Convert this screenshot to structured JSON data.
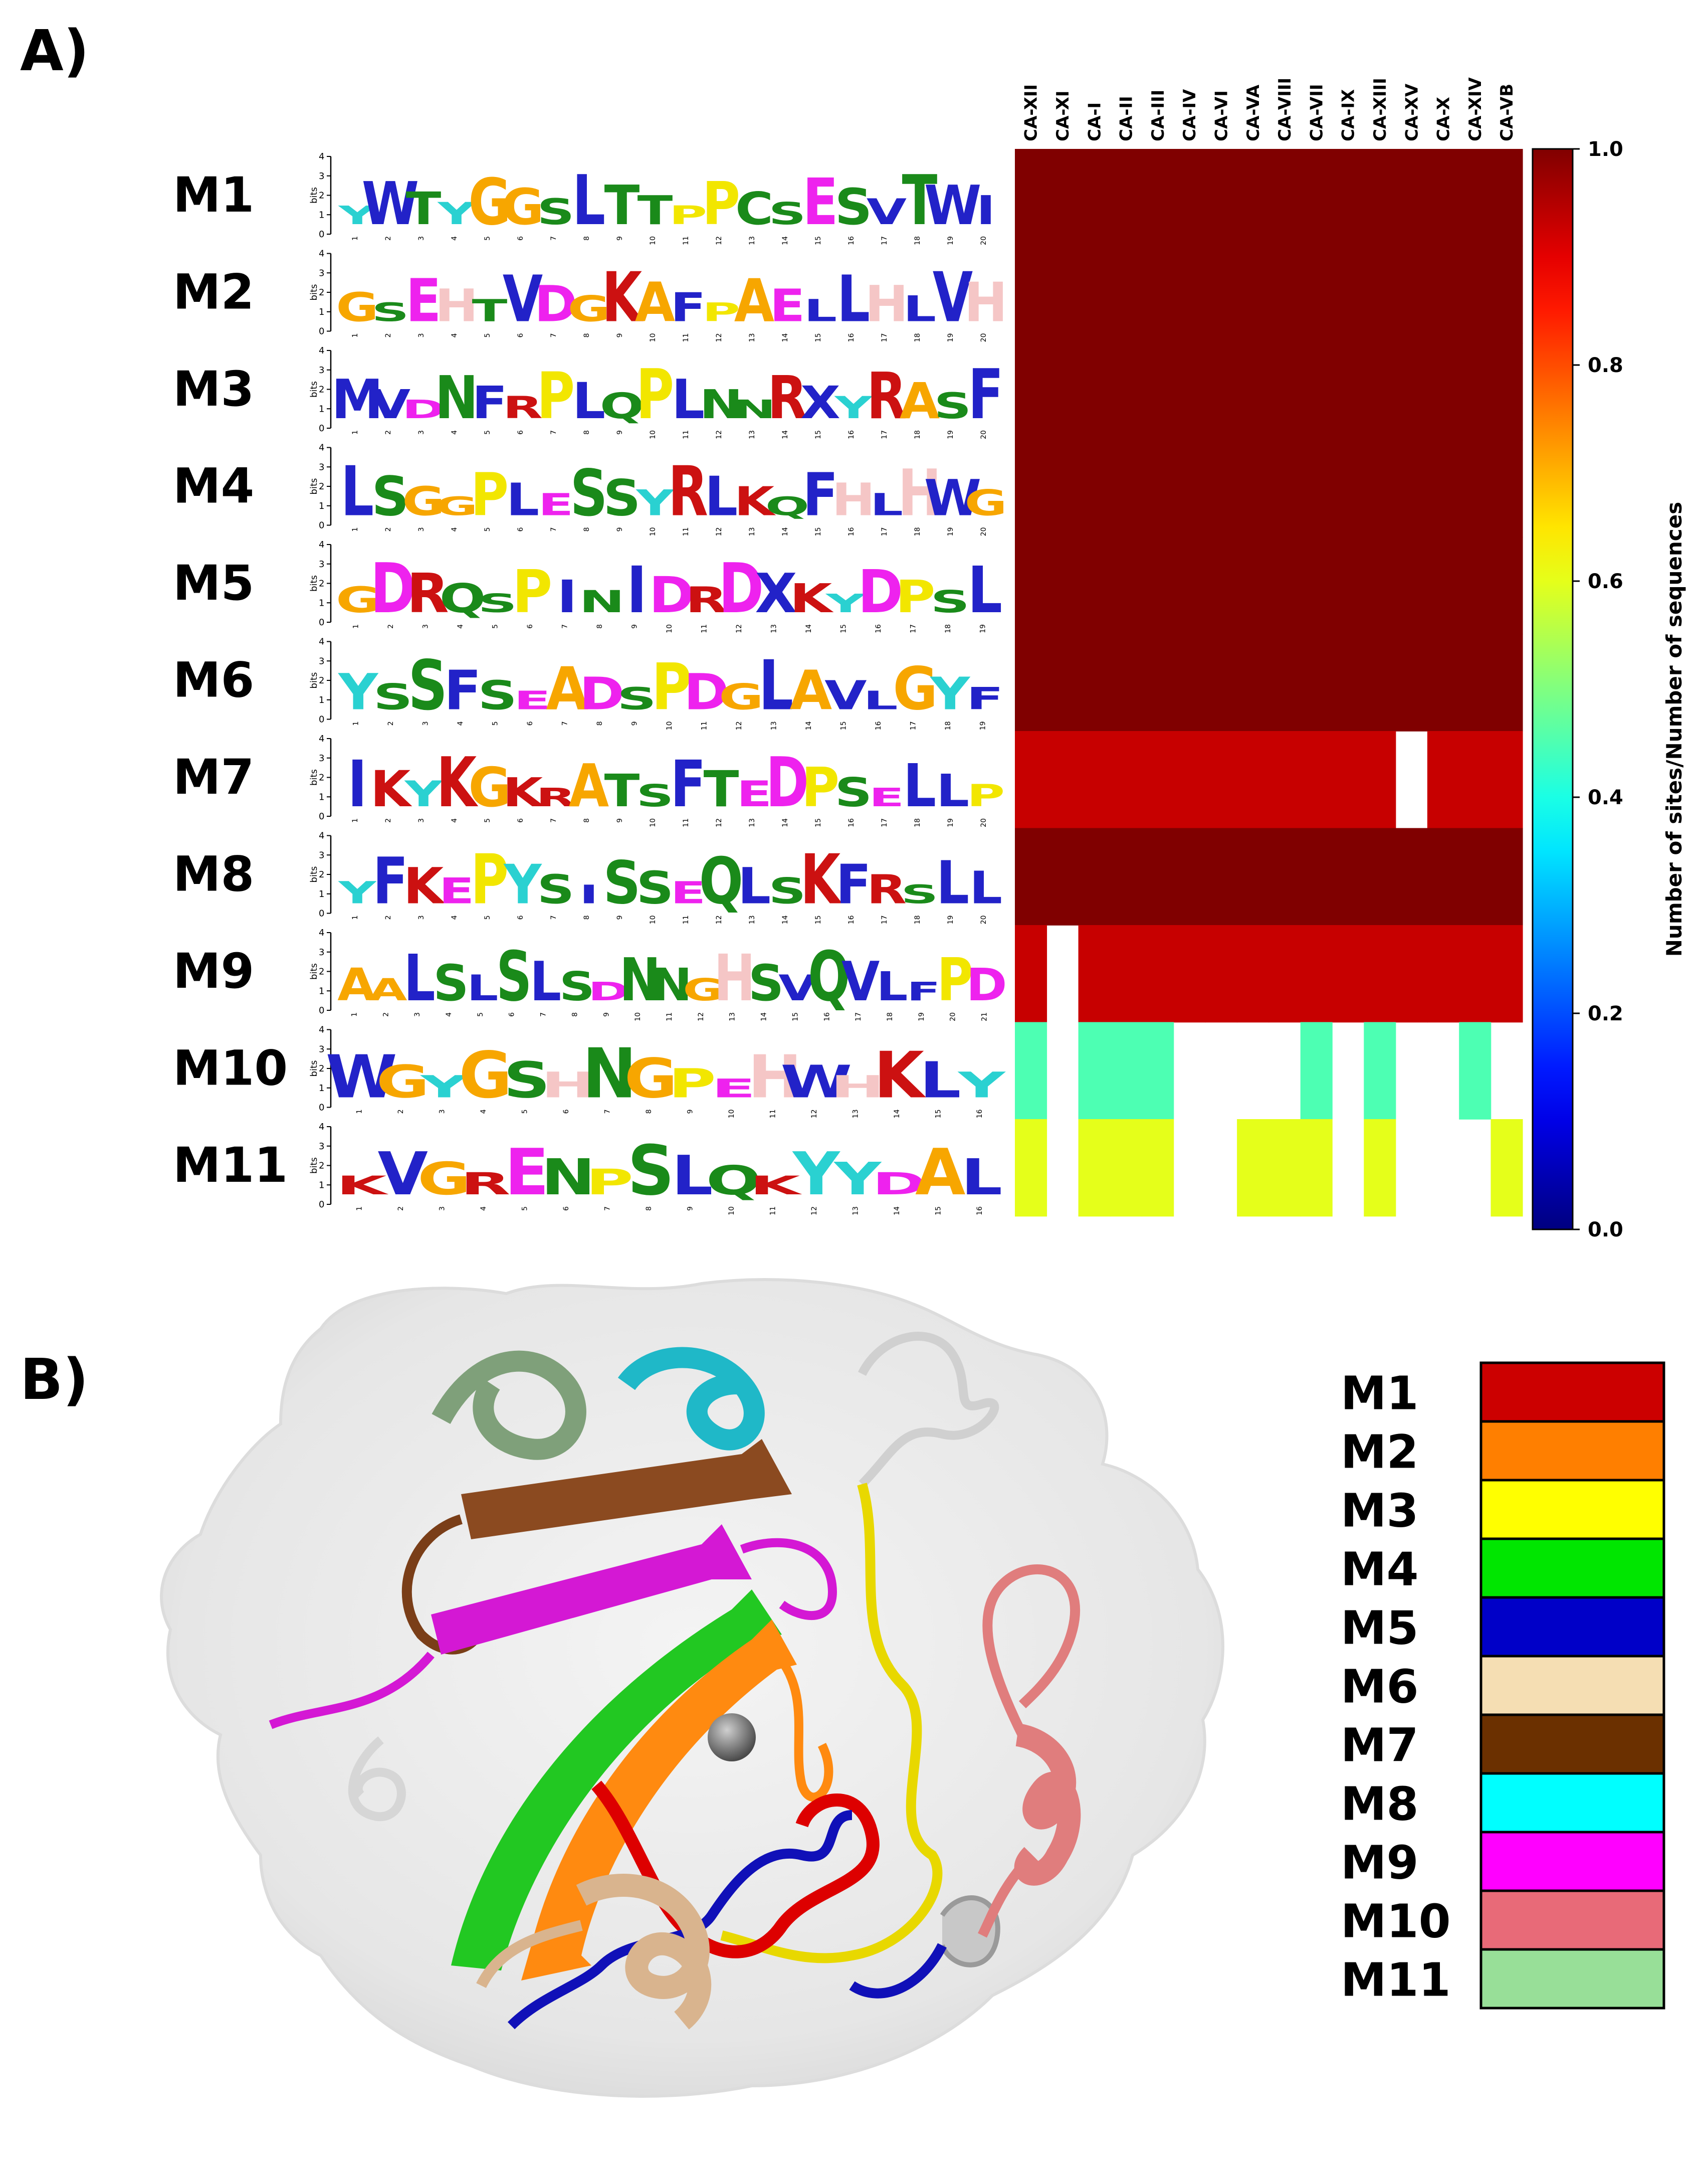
{
  "panel_a": {
    "label": "A)",
    "logos": [
      {
        "name": "M1",
        "seq": "YWTYGGSLTTPPCSESVTWI"
      },
      {
        "name": "M2",
        "seq": "GSEHTVDGKAFPAELLHLVH"
      },
      {
        "name": "M3",
        "seq": "MVDNFRPLQPLNNRXYRASF"
      },
      {
        "name": "M4",
        "seq": "LSGGPLESSYRLKQFHLHWG"
      },
      {
        "name": "M5",
        "seq": "GDRQSPINIDRDXKYDPSL"
      },
      {
        "name": "M6",
        "seq": "YSSFSEADSPDGLAVLGYF"
      },
      {
        "name": "M7",
        "seq": "IKYKGKRATSFTEDPSELLP"
      },
      {
        "name": "M8",
        "seq": "YFKEPYSISSEQLSKFRSLL"
      },
      {
        "name": "M9",
        "seq": "AALSLSLSDNNGHSVQVLFPD"
      },
      {
        "name": "M10",
        "seq": "WGYGSHNGPEHWHKLY"
      },
      {
        "name": "M11",
        "seq": "KVGRENPSLQKYYDAL"
      }
    ],
    "logo_axis": {
      "ylabel": "bits",
      "yticks": [
        "0",
        "1",
        "2",
        "3",
        "4"
      ]
    },
    "residue_colors": {
      "G": "#f7a600",
      "A": "#f7a600",
      "S": "#1a8a1a",
      "T": "#1a8a1a",
      "C": "#1a8a1a",
      "Q": "#1a8a1a",
      "N": "#1a8a1a",
      "Y": "#2ad1d1",
      "W": "#2222c8",
      "F": "#2222c8",
      "V": "#2222c8",
      "L": "#2222c8",
      "I": "#2222c8",
      "M": "#2222c8",
      "P": "#f2e600",
      "H": "#f5c6c6",
      "K": "#cc1111",
      "R": "#cc1111",
      "D": "#ee22ee",
      "E": "#ee22ee",
      "X": "#2222c8"
    }
  },
  "chart_data": {
    "type": "heatmap",
    "columns": [
      "CA-XII",
      "CA-XI",
      "CA-I",
      "CA-II",
      "CA-III",
      "CA-IV",
      "CA-VI",
      "CA-VA",
      "CA-VIII",
      "CA-VII",
      "CA-IX",
      "CA-XIII",
      "CA-XV",
      "CA-X",
      "CA-XIV",
      "CA-VB"
    ],
    "rows": [
      "M1",
      "M2",
      "M3",
      "M4",
      "M5",
      "M6",
      "M7",
      "M8",
      "M9",
      "M10",
      "M11"
    ],
    "values": [
      [
        1,
        1,
        1,
        1,
        1,
        1,
        1,
        1,
        1,
        1,
        1,
        1,
        1,
        1,
        1,
        1
      ],
      [
        1,
        1,
        1,
        1,
        1,
        1,
        1,
        1,
        1,
        1,
        1,
        1,
        1,
        1,
        1,
        1
      ],
      [
        1,
        1,
        1,
        1,
        1,
        1,
        1,
        1,
        1,
        1,
        1,
        1,
        1,
        1,
        1,
        1
      ],
      [
        1,
        1,
        1,
        1,
        1,
        1,
        1,
        1,
        1,
        1,
        1,
        1,
        1,
        1,
        1,
        1
      ],
      [
        1,
        1,
        1,
        1,
        1,
        1,
        1,
        1,
        1,
        1,
        1,
        1,
        1,
        1,
        1,
        1
      ],
      [
        1,
        1,
        1,
        1,
        1,
        1,
        1,
        1,
        1,
        1,
        1,
        1,
        1,
        1,
        1,
        1
      ],
      [
        0.93,
        0.93,
        0.93,
        0.93,
        0.93,
        0.93,
        0.93,
        0.93,
        0.93,
        0.93,
        0.93,
        0.93,
        null,
        0.93,
        0.93,
        0.93
      ],
      [
        1,
        1,
        1,
        1,
        1,
        1,
        1,
        1,
        1,
        1,
        1,
        1,
        1,
        1,
        1,
        1
      ],
      [
        0.93,
        null,
        0.93,
        0.93,
        0.93,
        0.93,
        0.93,
        0.93,
        0.93,
        0.93,
        0.93,
        0.93,
        0.93,
        0.93,
        0.93,
        0.93
      ],
      [
        0.45,
        null,
        0.45,
        0.45,
        0.45,
        null,
        null,
        null,
        null,
        0.45,
        null,
        0.45,
        null,
        null,
        0.45,
        null
      ],
      [
        0.6,
        null,
        0.6,
        0.6,
        0.6,
        null,
        null,
        0.6,
        0.6,
        0.6,
        null,
        0.6,
        null,
        null,
        null,
        0.6
      ]
    ],
    "colorbar": {
      "label": "Number of sites/Number of sequences",
      "range": [
        0.0,
        1.0
      ],
      "ticks": [
        "0.0",
        "0.2",
        "0.4",
        "0.6",
        "0.8",
        "1.0"
      ]
    }
  },
  "panel_b": {
    "label": "B)",
    "legend": [
      {
        "name": "M1",
        "color": "#cc0000"
      },
      {
        "name": "M2",
        "color": "#ff7f00"
      },
      {
        "name": "M3",
        "color": "#ffff00"
      },
      {
        "name": "M4",
        "color": "#00e600"
      },
      {
        "name": "M5",
        "color": "#0000c8"
      },
      {
        "name": "M6",
        "color": "#f5deb3"
      },
      {
        "name": "M7",
        "color": "#6b3000"
      },
      {
        "name": "M8",
        "color": "#00ffff"
      },
      {
        "name": "M9",
        "color": "#ff00ff"
      },
      {
        "name": "M10",
        "color": "#e86a78"
      },
      {
        "name": "M11",
        "color": "#98df98"
      }
    ]
  }
}
